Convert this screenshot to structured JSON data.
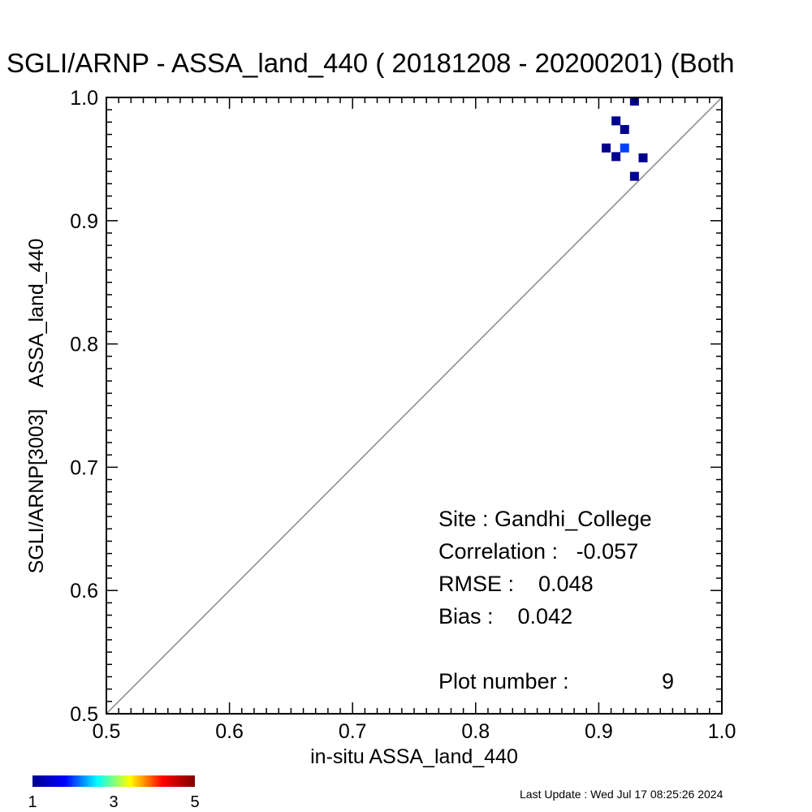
{
  "chart_data": {
    "type": "scatter",
    "title": "SGLI/ARNP - ASSA_land_440 ( 20181208 - 20200201) (Both",
    "xlabel": "in-situ ASSA_land_440",
    "ylabel": "SGLI/ARNP[3003]    ASSA_land_440",
    "xlim": [
      0.5,
      1.0
    ],
    "ylim": [
      0.5,
      1.0
    ],
    "x_ticks": [
      "0.5",
      "0.6",
      "0.7",
      "0.8",
      "0.9",
      "1.0"
    ],
    "y_ticks": [
      "0.5",
      "0.6",
      "0.7",
      "0.8",
      "0.9",
      "1.0"
    ],
    "one_to_one_line": true,
    "grid": false,
    "points": [
      {
        "x": 0.929,
        "y": 0.997,
        "count": 1
      },
      {
        "x": 0.914,
        "y": 0.981,
        "count": 1
      },
      {
        "x": 0.921,
        "y": 0.974,
        "count": 1
      },
      {
        "x": 0.906,
        "y": 0.959,
        "count": 1
      },
      {
        "x": 0.921,
        "y": 0.959,
        "count": 2
      },
      {
        "x": 0.914,
        "y": 0.952,
        "count": 1
      },
      {
        "x": 0.936,
        "y": 0.951,
        "count": 1
      },
      {
        "x": 0.929,
        "y": 0.936,
        "count": 1
      }
    ],
    "colorbar": {
      "min": 1,
      "max": 5,
      "tick_labels": [
        "1",
        "3",
        "5"
      ],
      "colors": [
        "#00008f",
        "#0000ff",
        "#00ffff",
        "#ffff00",
        "#ff0000",
        "#800000"
      ]
    },
    "stats": {
      "site": "Site : Gandhi_College",
      "correlation": "Correlation :   -0.057",
      "rmse": "RMSE :    0.048",
      "bias": "Bias :    0.042",
      "plot_number_label": "Plot number :",
      "plot_number_value": "9"
    }
  },
  "footer": {
    "last_update": "Last Update : Wed Jul 17 08:25:26 2024"
  }
}
